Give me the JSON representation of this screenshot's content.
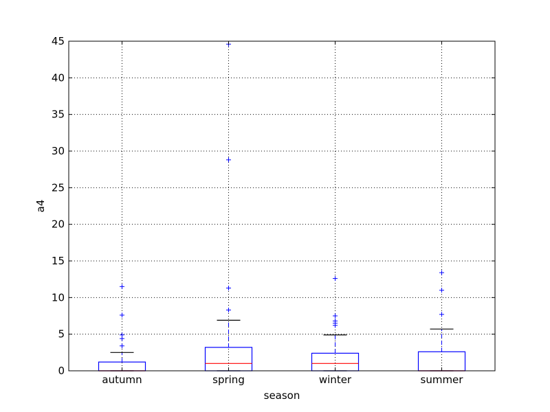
{
  "chart_data": {
    "type": "box",
    "categories": [
      "autumn",
      "spring",
      "winter",
      "summer"
    ],
    "xlabel": "season",
    "ylabel": "a4",
    "ylim": [
      0,
      45
    ],
    "yticks": [
      0,
      5,
      10,
      15,
      20,
      25,
      30,
      35,
      40,
      45
    ],
    "grid": true,
    "colors": {
      "box": "#0000ff",
      "median": "#ff0000",
      "cap": "#000000",
      "flier": "#0000ff",
      "grid": "#000000"
    },
    "boxes": [
      {
        "category": "autumn",
        "q1": 0,
        "median": 0,
        "q3": 1.2,
        "whisker_low": 0,
        "whisker_high": 2.5,
        "fliers": [
          3.4,
          4.4,
          4.9,
          7.6,
          11.5
        ]
      },
      {
        "category": "spring",
        "q1": 0,
        "median": 1.0,
        "q3": 3.2,
        "whisker_low": 0,
        "whisker_high": 6.9,
        "fliers": [
          8.3,
          11.3,
          28.8,
          44.6
        ]
      },
      {
        "category": "winter",
        "q1": 0,
        "median": 1.0,
        "q3": 2.4,
        "whisker_low": 0,
        "whisker_high": 4.9,
        "fliers": [
          6.2,
          6.5,
          6.8,
          7.5,
          12.6
        ]
      },
      {
        "category": "summer",
        "q1": 0,
        "median": 0,
        "q3": 2.6,
        "whisker_low": 0,
        "whisker_high": 5.7,
        "fliers": [
          7.7,
          11.0,
          13.4
        ]
      }
    ]
  }
}
